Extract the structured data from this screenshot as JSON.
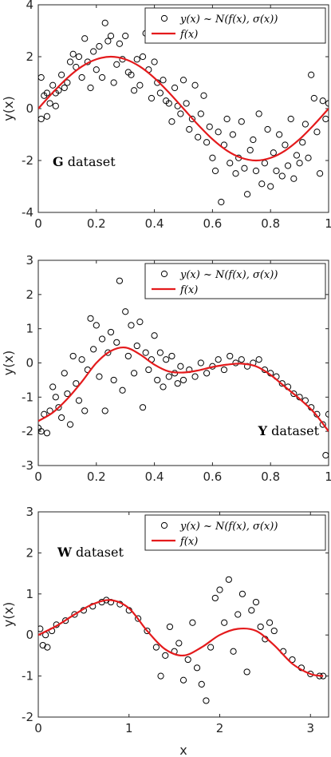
{
  "chart_data": [
    {
      "type": "scatter",
      "x_ticks": [
        "0",
        "0.2",
        "0.4",
        "0.6",
        "0.8",
        "1"
      ],
      "y_ticks": [
        "4",
        "2",
        "0",
        "-2",
        "-4"
      ],
      "xlim": [
        0,
        1
      ],
      "ylim": [
        -4,
        4
      ],
      "ylabel": "y(x)",
      "xlabel": "",
      "annotation": {
        "bold": "G",
        "text": " dataset",
        "position": "lower-left"
      },
      "legend": {
        "position": "top-right",
        "entries": [
          "y(x) ~ N(f(x), σ(x))",
          "f(x)"
        ]
      },
      "curve": {
        "name": "f(x)",
        "color": "#e41a1c",
        "x": [
          0,
          0.05,
          0.1,
          0.15,
          0.2,
          0.25,
          0.3,
          0.35,
          0.4,
          0.45,
          0.5,
          0.55,
          0.6,
          0.65,
          0.7,
          0.75,
          0.8,
          0.85,
          0.9,
          0.95,
          1
        ],
        "y": [
          0.0,
          0.62,
          1.18,
          1.62,
          1.9,
          2.0,
          1.9,
          1.62,
          1.18,
          0.62,
          0.0,
          -0.62,
          -1.18,
          -1.62,
          -1.9,
          -2.0,
          -1.9,
          -1.62,
          -1.18,
          -0.62,
          0.0
        ]
      },
      "points": [
        [
          0.01,
          -0.4
        ],
        [
          0.01,
          1.2
        ],
        [
          0.02,
          0.5
        ],
        [
          0.03,
          0.6
        ],
        [
          0.03,
          -0.3
        ],
        [
          0.04,
          0.2
        ],
        [
          0.05,
          0.9
        ],
        [
          0.06,
          0.6
        ],
        [
          0.06,
          0.1
        ],
        [
          0.07,
          0.7
        ],
        [
          0.08,
          1.3
        ],
        [
          0.09,
          0.8
        ],
        [
          0.1,
          1.0
        ],
        [
          0.11,
          1.8
        ],
        [
          0.12,
          2.1
        ],
        [
          0.13,
          1.6
        ],
        [
          0.14,
          2.0
        ],
        [
          0.15,
          1.2
        ],
        [
          0.16,
          2.7
        ],
        [
          0.17,
          1.8
        ],
        [
          0.18,
          0.8
        ],
        [
          0.19,
          2.2
        ],
        [
          0.2,
          1.5
        ],
        [
          0.21,
          2.4
        ],
        [
          0.22,
          1.2
        ],
        [
          0.23,
          3.3
        ],
        [
          0.24,
          2.6
        ],
        [
          0.25,
          2.8
        ],
        [
          0.26,
          1.0
        ],
        [
          0.27,
          1.7
        ],
        [
          0.28,
          2.5
        ],
        [
          0.29,
          1.9
        ],
        [
          0.3,
          2.8
        ],
        [
          0.31,
          1.4
        ],
        [
          0.32,
          1.3
        ],
        [
          0.33,
          0.7
        ],
        [
          0.34,
          1.9
        ],
        [
          0.35,
          0.9
        ],
        [
          0.36,
          2.0
        ],
        [
          0.37,
          2.9
        ],
        [
          0.38,
          1.5
        ],
        [
          0.39,
          0.4
        ],
        [
          0.4,
          1.8
        ],
        [
          0.41,
          1.0
        ],
        [
          0.42,
          0.6
        ],
        [
          0.43,
          1.1
        ],
        [
          0.44,
          0.3
        ],
        [
          0.45,
          0.2
        ],
        [
          0.46,
          -0.5
        ],
        [
          0.47,
          0.8
        ],
        [
          0.48,
          0.1
        ],
        [
          0.49,
          -0.2
        ],
        [
          0.5,
          1.1
        ],
        [
          0.51,
          0.2
        ],
        [
          0.52,
          -0.8
        ],
        [
          0.53,
          -0.4
        ],
        [
          0.54,
          0.9
        ],
        [
          0.55,
          -1.1
        ],
        [
          0.56,
          -0.2
        ],
        [
          0.57,
          0.5
        ],
        [
          0.58,
          -1.3
        ],
        [
          0.59,
          -0.7
        ],
        [
          0.6,
          -1.9
        ],
        [
          0.61,
          -2.4
        ],
        [
          0.62,
          -0.9
        ],
        [
          0.63,
          -3.6
        ],
        [
          0.64,
          -1.4
        ],
        [
          0.65,
          -0.4
        ],
        [
          0.66,
          -2.1
        ],
        [
          0.67,
          -1.0
        ],
        [
          0.68,
          -2.5
        ],
        [
          0.69,
          -1.9
        ],
        [
          0.7,
          -0.5
        ],
        [
          0.71,
          -2.3
        ],
        [
          0.72,
          -3.3
        ],
        [
          0.73,
          -1.6
        ],
        [
          0.74,
          -1.2
        ],
        [
          0.75,
          -2.4
        ],
        [
          0.76,
          -0.2
        ],
        [
          0.77,
          -2.9
        ],
        [
          0.78,
          -2.1
        ],
        [
          0.79,
          -0.8
        ],
        [
          0.8,
          -3.0
        ],
        [
          0.81,
          -1.7
        ],
        [
          0.82,
          -2.4
        ],
        [
          0.83,
          -1.0
        ],
        [
          0.84,
          -2.6
        ],
        [
          0.85,
          -1.4
        ],
        [
          0.86,
          -2.2
        ],
        [
          0.87,
          -0.4
        ],
        [
          0.88,
          -2.7
        ],
        [
          0.89,
          -1.8
        ],
        [
          0.9,
          -2.1
        ],
        [
          0.91,
          -1.3
        ],
        [
          0.92,
          -0.6
        ],
        [
          0.93,
          -1.9
        ],
        [
          0.94,
          1.3
        ],
        [
          0.95,
          0.4
        ],
        [
          0.96,
          -0.9
        ],
        [
          0.97,
          -2.5
        ],
        [
          0.98,
          0.3
        ],
        [
          0.99,
          -0.4
        ],
        [
          1.0,
          0.2
        ]
      ]
    },
    {
      "type": "scatter",
      "x_ticks": [
        "0",
        "0.2",
        "0.4",
        "0.6",
        "0.8",
        "1"
      ],
      "y_ticks": [
        "3",
        "2",
        "1",
        "0",
        "-1",
        "-2",
        "-3"
      ],
      "xlim": [
        0,
        1
      ],
      "ylim": [
        -3,
        3
      ],
      "ylabel": "y(x)",
      "xlabel": "",
      "annotation": {
        "bold": "Y",
        "text": " dataset",
        "position": "lower-right"
      },
      "legend": {
        "position": "top-right",
        "entries": [
          "y(x) ~ N(f(x), σ(x))",
          "f(x)"
        ]
      },
      "curve": {
        "name": "f(x)",
        "color": "#e41a1c",
        "x": [
          0,
          0.05,
          0.1,
          0.15,
          0.2,
          0.25,
          0.3,
          0.35,
          0.4,
          0.45,
          0.5,
          0.55,
          0.6,
          0.65,
          0.7,
          0.75,
          0.8,
          0.85,
          0.9,
          0.95,
          1
        ],
        "y": [
          -1.7,
          -1.45,
          -1.05,
          -0.55,
          0.0,
          0.35,
          0.45,
          0.25,
          -0.05,
          -0.25,
          -0.28,
          -0.22,
          -0.12,
          -0.05,
          -0.02,
          -0.1,
          -0.35,
          -0.7,
          -1.05,
          -1.45,
          -2.0
        ]
      },
      "points": [
        [
          0.0,
          -1.9
        ],
        [
          0.01,
          -2.0
        ],
        [
          0.02,
          -1.5
        ],
        [
          0.03,
          -2.05
        ],
        [
          0.04,
          -1.4
        ],
        [
          0.05,
          -0.7
        ],
        [
          0.06,
          -1.0
        ],
        [
          0.07,
          -1.3
        ],
        [
          0.08,
          -1.6
        ],
        [
          0.09,
          -0.3
        ],
        [
          0.1,
          -0.9
        ],
        [
          0.11,
          -1.8
        ],
        [
          0.12,
          0.2
        ],
        [
          0.13,
          -0.6
        ],
        [
          0.14,
          -1.1
        ],
        [
          0.15,
          0.1
        ],
        [
          0.16,
          -1.4
        ],
        [
          0.17,
          -0.2
        ],
        [
          0.18,
          1.3
        ],
        [
          0.19,
          0.4
        ],
        [
          0.2,
          1.1
        ],
        [
          0.21,
          -0.4
        ],
        [
          0.22,
          0.7
        ],
        [
          0.23,
          -1.4
        ],
        [
          0.24,
          0.3
        ],
        [
          0.25,
          0.9
        ],
        [
          0.26,
          -0.5
        ],
        [
          0.27,
          0.6
        ],
        [
          0.28,
          2.4
        ],
        [
          0.29,
          -0.8
        ],
        [
          0.3,
          1.5
        ],
        [
          0.31,
          0.2
        ],
        [
          0.32,
          1.1
        ],
        [
          0.33,
          -0.3
        ],
        [
          0.34,
          0.5
        ],
        [
          0.35,
          1.2
        ],
        [
          0.36,
          -1.3
        ],
        [
          0.37,
          0.3
        ],
        [
          0.38,
          -0.2
        ],
        [
          0.39,
          0.1
        ],
        [
          0.4,
          0.8
        ],
        [
          0.41,
          -0.5
        ],
        [
          0.42,
          0.3
        ],
        [
          0.43,
          -0.7
        ],
        [
          0.44,
          0.1
        ],
        [
          0.45,
          -0.4
        ],
        [
          0.46,
          0.2
        ],
        [
          0.47,
          -0.3
        ],
        [
          0.48,
          -0.6
        ],
        [
          0.49,
          -0.1
        ],
        [
          0.5,
          -0.5
        ],
        [
          0.52,
          -0.2
        ],
        [
          0.54,
          -0.4
        ],
        [
          0.56,
          0.0
        ],
        [
          0.58,
          -0.3
        ],
        [
          0.6,
          -0.1
        ],
        [
          0.62,
          0.1
        ],
        [
          0.64,
          -0.2
        ],
        [
          0.66,
          0.2
        ],
        [
          0.68,
          0.0
        ],
        [
          0.7,
          0.1
        ],
        [
          0.72,
          -0.1
        ],
        [
          0.74,
          0.0
        ],
        [
          0.76,
          0.1
        ],
        [
          0.78,
          -0.2
        ],
        [
          0.8,
          -0.3
        ],
        [
          0.82,
          -0.4
        ],
        [
          0.84,
          -0.6
        ],
        [
          0.86,
          -0.7
        ],
        [
          0.88,
          -0.9
        ],
        [
          0.9,
          -1.0
        ],
        [
          0.92,
          -1.1
        ],
        [
          0.94,
          -1.3
        ],
        [
          0.96,
          -1.5
        ],
        [
          0.98,
          -1.8
        ],
        [
          0.99,
          -2.7
        ],
        [
          1.0,
          -1.5
        ]
      ]
    },
    {
      "type": "scatter",
      "x_ticks": [
        "0",
        "1",
        "2",
        "3"
      ],
      "y_ticks": [
        "3",
        "2",
        "1",
        "0",
        "-1",
        "-2"
      ],
      "xlim": [
        0,
        3.2
      ],
      "ylim": [
        -2,
        3
      ],
      "ylabel": "y(x)",
      "xlabel": "x",
      "annotation": {
        "bold": "W",
        "text": " dataset",
        "position": "upper-left"
      },
      "legend": {
        "position": "top-right",
        "entries": [
          "y(x) ~ N(f(x), σ(x))",
          "f(x)"
        ]
      },
      "curve": {
        "name": "f(x)",
        "color": "#e41a1c",
        "x": [
          0,
          0.2,
          0.4,
          0.6,
          0.8,
          1.0,
          1.2,
          1.4,
          1.6,
          1.8,
          2.0,
          2.2,
          2.4,
          2.6,
          2.8,
          3.0,
          3.14
        ],
        "y": [
          0.0,
          0.22,
          0.5,
          0.75,
          0.85,
          0.65,
          0.1,
          -0.35,
          -0.5,
          -0.3,
          0.0,
          0.15,
          0.1,
          -0.25,
          -0.7,
          -0.95,
          -1.0
        ]
      },
      "points": [
        [
          0.02,
          0.15
        ],
        [
          0.05,
          -0.25
        ],
        [
          0.08,
          0.0
        ],
        [
          0.1,
          -0.3
        ],
        [
          0.15,
          0.1
        ],
        [
          0.2,
          0.25
        ],
        [
          0.3,
          0.35
        ],
        [
          0.4,
          0.5
        ],
        [
          0.5,
          0.6
        ],
        [
          0.6,
          0.7
        ],
        [
          0.7,
          0.8
        ],
        [
          0.75,
          0.85
        ],
        [
          0.8,
          0.8
        ],
        [
          0.9,
          0.75
        ],
        [
          1.0,
          0.6
        ],
        [
          1.1,
          0.4
        ],
        [
          1.2,
          0.1
        ],
        [
          1.3,
          -0.3
        ],
        [
          1.35,
          -1.0
        ],
        [
          1.4,
          -0.5
        ],
        [
          1.45,
          0.2
        ],
        [
          1.5,
          -0.4
        ],
        [
          1.55,
          -0.2
        ],
        [
          1.6,
          -1.1
        ],
        [
          1.65,
          -0.6
        ],
        [
          1.7,
          0.3
        ],
        [
          1.75,
          -0.8
        ],
        [
          1.8,
          -1.2
        ],
        [
          1.85,
          -1.6
        ],
        [
          1.9,
          -0.3
        ],
        [
          1.95,
          0.9
        ],
        [
          2.0,
          1.1
        ],
        [
          2.05,
          0.3
        ],
        [
          2.1,
          1.35
        ],
        [
          2.15,
          -0.4
        ],
        [
          2.2,
          0.5
        ],
        [
          2.25,
          1.0
        ],
        [
          2.3,
          -0.9
        ],
        [
          2.35,
          0.6
        ],
        [
          2.4,
          0.8
        ],
        [
          2.45,
          0.2
        ],
        [
          2.5,
          -0.1
        ],
        [
          2.55,
          0.3
        ],
        [
          2.6,
          0.1
        ],
        [
          2.7,
          -0.4
        ],
        [
          2.8,
          -0.6
        ],
        [
          2.9,
          -0.8
        ],
        [
          3.0,
          -0.95
        ],
        [
          3.1,
          -1.0
        ],
        [
          3.14,
          -1.0
        ]
      ]
    }
  ]
}
